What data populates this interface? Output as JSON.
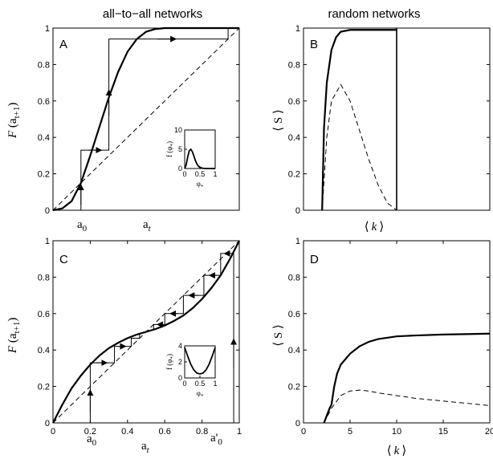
{
  "columns": {
    "left_title": "all−to−all networks",
    "right_title": "random networks"
  },
  "labels": {
    "F": "F",
    "a": "a",
    "a_sub": "t+1",
    "a_t": "a",
    "a_t_sub": "t",
    "S": "⟨ S ⟩",
    "k_open": "⟨",
    "k": "k",
    "k_close": "⟩",
    "a0": "a",
    "a0_sub": "0",
    "a0p": "a'",
    "a0p_sub": "0",
    "inset_f": "f (φ",
    "inset_f_sub": "*",
    "inset_f_close": ")",
    "inset_phi": "φ",
    "inset_phi_sub": "*"
  },
  "chart_data": [
    {
      "panel": "A",
      "type": "line",
      "xlim": [
        0,
        1
      ],
      "ylim": [
        0,
        1
      ],
      "yticks": [
        0,
        0.2,
        0.4,
        0.6,
        0.8,
        1
      ],
      "ytick_labels": [
        "0",
        "0.2",
        "0.4",
        "0.6",
        "0.8",
        "1"
      ],
      "series": [
        {
          "style": "solid-thick",
          "x": [
            0,
            0.05,
            0.1,
            0.15,
            0.2,
            0.25,
            0.3,
            0.35,
            0.4,
            0.45,
            0.5,
            0.55,
            0.6,
            0.7,
            0.8,
            0.9,
            1.0
          ],
          "y": [
            0,
            0.01,
            0.05,
            0.15,
            0.3,
            0.46,
            0.62,
            0.76,
            0.87,
            0.94,
            0.98,
            0.995,
            1,
            1,
            1,
            1,
            1
          ]
        },
        {
          "style": "dashed",
          "x": [
            0,
            1
          ],
          "y": [
            0,
            1
          ]
        }
      ],
      "cobweb": [
        [
          0.15,
          0
        ],
        [
          0.15,
          0.33
        ],
        [
          0.3,
          0.33
        ],
        [
          0.3,
          0.94
        ],
        [
          0.94,
          0.94
        ],
        [
          0.94,
          1
        ]
      ],
      "arrows": [
        {
          "x1": 0.15,
          "y1": 0.03,
          "x2": 0.15,
          "y2": 0.14
        },
        {
          "x1": 0.19,
          "y1": 0.33,
          "x2": 0.26,
          "y2": 0.33
        },
        {
          "x1": 0.3,
          "y1": 0.52,
          "x2": 0.3,
          "y2": 0.66
        },
        {
          "x1": 0.56,
          "y1": 0.94,
          "x2": 0.66,
          "y2": 0.94
        }
      ],
      "inset": {
        "xlim": [
          0,
          1
        ],
        "ylim": [
          0,
          10
        ],
        "xticks": [
          0,
          0.5,
          1
        ],
        "yticks": [
          0,
          5,
          10
        ],
        "x": [
          0,
          0.05,
          0.1,
          0.15,
          0.2,
          0.25,
          0.3,
          0.35,
          0.4,
          0.45,
          0.5,
          0.6,
          0.7,
          0.8,
          0.9,
          1.0
        ],
        "y": [
          0,
          1.0,
          3.0,
          4.6,
          5.0,
          4.4,
          3.3,
          2.1,
          1.2,
          0.6,
          0.3,
          0.05,
          0,
          0,
          0,
          0
        ]
      }
    },
    {
      "panel": "B",
      "type": "line",
      "xlim": [
        0,
        20
      ],
      "ylim": [
        0,
        1
      ],
      "yticks": [
        0,
        0.2,
        0.4,
        0.6,
        0.8,
        1
      ],
      "ytick_labels": [
        "0",
        "0.2",
        "0.4",
        "0.6",
        "0.8",
        "1"
      ],
      "series": [
        {
          "style": "solid-thick",
          "x": [
            2.0,
            2.2,
            2.5,
            3.0,
            3.5,
            4.0,
            5.0,
            6.0,
            10.0
          ],
          "y": [
            0,
            0.45,
            0.7,
            0.88,
            0.95,
            0.98,
            0.99,
            0.99,
            0.99
          ]
        },
        {
          "style": "dashed",
          "x": [
            2.0,
            2.5,
            3.0,
            4.0,
            5.0,
            6.0,
            7.0,
            8.0,
            9.0,
            10.0
          ],
          "y": [
            0,
            0.4,
            0.6,
            0.69,
            0.6,
            0.44,
            0.28,
            0.14,
            0.04,
            0
          ]
        },
        {
          "style": "solid",
          "x": [
            10,
            10
          ],
          "y": [
            0,
            1
          ]
        }
      ]
    },
    {
      "panel": "C",
      "type": "line",
      "xlim": [
        0,
        1
      ],
      "ylim": [
        0,
        1
      ],
      "xticks": [
        0,
        0.2,
        0.4,
        0.6,
        0.8,
        1
      ],
      "xtick_labels": [
        "0",
        "0.2",
        "0.4",
        "0.6",
        "0.8",
        "1"
      ],
      "yticks": [
        0,
        0.2,
        0.4,
        0.6,
        0.8,
        1
      ],
      "ytick_labels": [
        "0",
        "0.2",
        "0.4",
        "0.6",
        "0.8",
        "1"
      ],
      "series": [
        {
          "style": "solid-thick",
          "x": [
            0,
            0.05,
            0.1,
            0.15,
            0.2,
            0.25,
            0.3,
            0.35,
            0.4,
            0.45,
            0.5,
            0.55,
            0.6,
            0.65,
            0.7,
            0.75,
            0.8,
            0.85,
            0.9,
            0.95,
            1.0
          ],
          "y": [
            0,
            0.1,
            0.19,
            0.26,
            0.32,
            0.37,
            0.41,
            0.44,
            0.465,
            0.485,
            0.5,
            0.515,
            0.535,
            0.56,
            0.59,
            0.63,
            0.68,
            0.74,
            0.81,
            0.9,
            1.0
          ]
        },
        {
          "style": "dashed",
          "x": [
            0,
            1
          ],
          "y": [
            0,
            1
          ]
        }
      ],
      "cobweb_left": [
        [
          0.2,
          0
        ],
        [
          0.2,
          0.33
        ],
        [
          0.33,
          0.33
        ],
        [
          0.33,
          0.42
        ],
        [
          0.42,
          0.42
        ],
        [
          0.42,
          0.465
        ],
        [
          0.465,
          0.465
        ],
        [
          0.465,
          0.485
        ]
      ],
      "cobweb_right": [
        [
          0.97,
          0
        ],
        [
          0.97,
          0.93
        ],
        [
          0.9,
          0.93
        ],
        [
          0.9,
          0.81
        ],
        [
          0.81,
          0.81
        ],
        [
          0.81,
          0.7
        ],
        [
          0.7,
          0.7
        ],
        [
          0.7,
          0.6
        ],
        [
          0.6,
          0.6
        ],
        [
          0.6,
          0.54
        ],
        [
          0.54,
          0.54
        ],
        [
          0.54,
          0.51
        ]
      ],
      "arrows": [
        {
          "x1": 0.2,
          "y1": 0.06,
          "x2": 0.2,
          "y2": 0.18
        },
        {
          "x1": 0.23,
          "y1": 0.33,
          "x2": 0.29,
          "y2": 0.33
        },
        {
          "x1": 0.35,
          "y1": 0.42,
          "x2": 0.39,
          "y2": 0.42
        },
        {
          "x1": 0.97,
          "y1": 0.3,
          "x2": 0.97,
          "y2": 0.46
        },
        {
          "x1": 0.95,
          "y1": 0.93,
          "x2": 0.92,
          "y2": 0.93
        },
        {
          "x1": 0.88,
          "y1": 0.81,
          "x2": 0.84,
          "y2": 0.81
        },
        {
          "x1": 0.78,
          "y1": 0.7,
          "x2": 0.73,
          "y2": 0.7
        },
        {
          "x1": 0.67,
          "y1": 0.6,
          "x2": 0.63,
          "y2": 0.6
        },
        {
          "x1": 0.58,
          "y1": 0.54,
          "x2": 0.56,
          "y2": 0.54
        }
      ],
      "inset": {
        "xlim": [
          0,
          1
        ],
        "ylim": [
          0,
          4
        ],
        "xticks": [
          0,
          0.5,
          1
        ],
        "yticks": [
          0,
          2,
          4
        ],
        "xtick_labels": [
          "0",
          "0.5",
          "1"
        ],
        "ytick_labels": [
          "0",
          "2",
          "4"
        ],
        "x": [
          0,
          0.1,
          0.2,
          0.3,
          0.4,
          0.5,
          0.6,
          0.7,
          0.8,
          0.9,
          1.0
        ],
        "y": [
          3.8,
          2.7,
          1.7,
          1.0,
          0.6,
          0.5,
          0.6,
          1.0,
          1.7,
          2.7,
          3.8
        ]
      }
    },
    {
      "panel": "D",
      "type": "line",
      "xlim": [
        0,
        20
      ],
      "ylim": [
        0,
        1
      ],
      "xticks": [
        0,
        5,
        10,
        15,
        20
      ],
      "xtick_labels": [
        "0",
        "5",
        "10",
        "15",
        "20"
      ],
      "yticks": [
        0,
        0.2,
        0.4,
        0.6,
        0.8,
        1
      ],
      "ytick_labels": [
        "0",
        "0.2",
        "0.4",
        "0.6",
        "0.8",
        "1"
      ],
      "series": [
        {
          "style": "solid-thick",
          "x": [
            2.2,
            2.5,
            2.8,
            3.0,
            3.3,
            3.6,
            4.0,
            5.0,
            6.0,
            7.0,
            8.0,
            10.0,
            12.0,
            15.0,
            18.0,
            20.0
          ],
          "y": [
            0,
            0.04,
            0.08,
            0.1,
            0.2,
            0.27,
            0.32,
            0.38,
            0.42,
            0.445,
            0.46,
            0.475,
            0.48,
            0.485,
            0.488,
            0.49
          ]
        },
        {
          "style": "dashed",
          "x": [
            2.2,
            3.0,
            4.0,
            5.0,
            6.0,
            7.0,
            8.0,
            10.0,
            12.0,
            15.0,
            18.0,
            20.0
          ],
          "y": [
            0,
            0.08,
            0.15,
            0.175,
            0.18,
            0.175,
            0.165,
            0.15,
            0.135,
            0.12,
            0.105,
            0.095
          ]
        }
      ]
    }
  ]
}
